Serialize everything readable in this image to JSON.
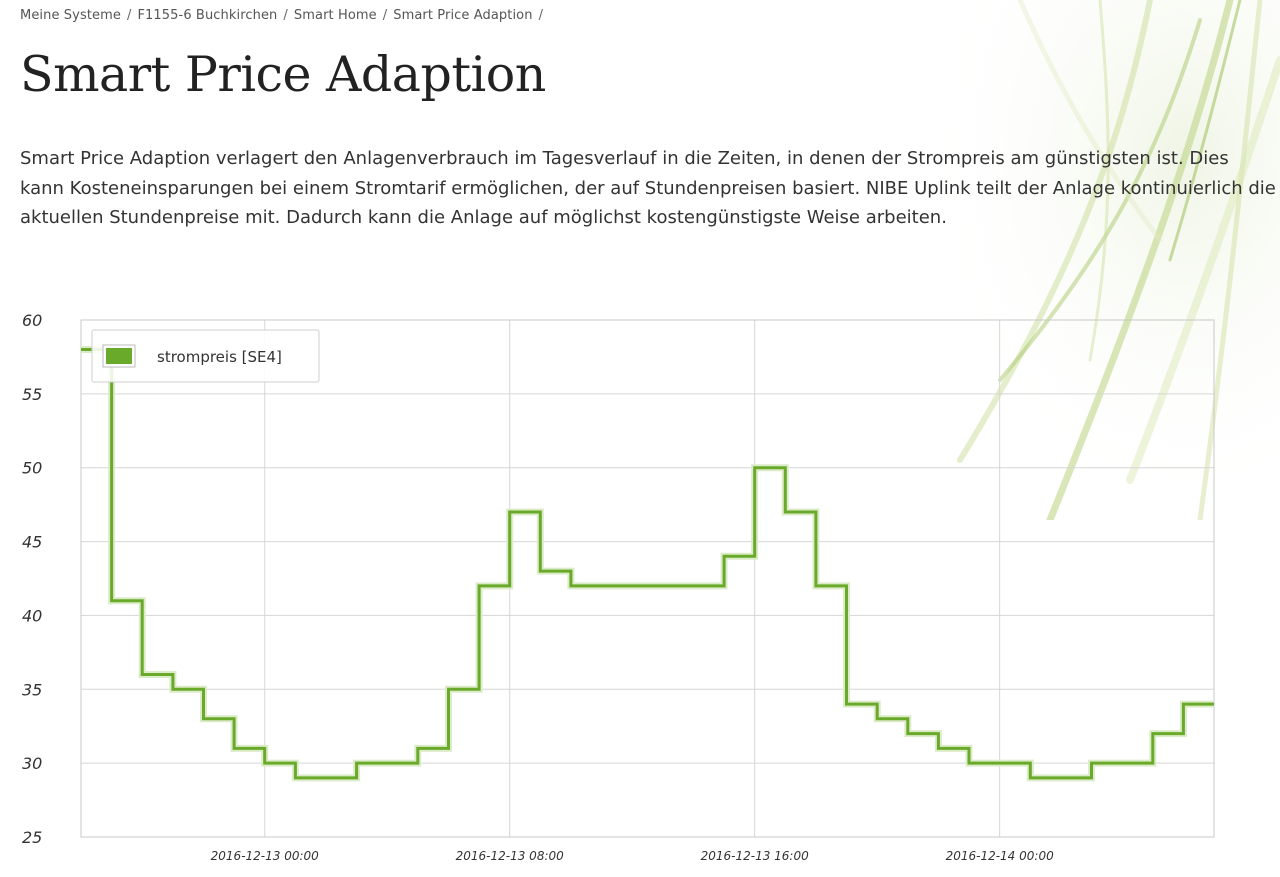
{
  "breadcrumb": {
    "items": [
      "Meine Systeme",
      "F1155-6 Buchkirchen",
      "Smart Home",
      "Smart Price Adaption"
    ],
    "separator": "/"
  },
  "page": {
    "title": "Smart Price Adaption",
    "intro": "Smart Price Adaption verlagert den Anlagenverbrauch im Tagesverlauf in die Zeiten, in denen der Strompreis am günstigsten ist. Dies kann Kosteneinsparungen bei einem Stromtarif ermöglichen, der auf Stundenpreisen basiert. NIBE Uplink teilt der Anlage kontinuierlich die aktuellen Stundenpreise mit. Dadurch kann die Anlage auf möglichst kostengünstigste Weise arbeiten."
  },
  "chart_data": {
    "type": "line",
    "step": true,
    "title": "",
    "xlabel": "",
    "ylabel": "",
    "ylim": [
      25,
      60
    ],
    "yticks": [
      25,
      30,
      35,
      40,
      45,
      50,
      55,
      60
    ],
    "xlim": [
      "2016-12-12 18:00",
      "2016-12-14 07:00"
    ],
    "xticks": [
      "2016-12-13 00:00",
      "2016-12-13 08:00",
      "2016-12-13 16:00",
      "2016-12-14 00:00"
    ],
    "grid": true,
    "legend_position": "top-left",
    "series": [
      {
        "name": "strompreis [SE4]",
        "color": "#6aaa2a",
        "x": [
          "2016-12-12 18:00",
          "2016-12-12 19:00",
          "2016-12-12 20:00",
          "2016-12-12 21:00",
          "2016-12-12 22:00",
          "2016-12-12 23:00",
          "2016-12-13 00:00",
          "2016-12-13 01:00",
          "2016-12-13 02:00",
          "2016-12-13 03:00",
          "2016-12-13 04:00",
          "2016-12-13 05:00",
          "2016-12-13 06:00",
          "2016-12-13 07:00",
          "2016-12-13 08:00",
          "2016-12-13 09:00",
          "2016-12-13 10:00",
          "2016-12-13 11:00",
          "2016-12-13 12:00",
          "2016-12-13 13:00",
          "2016-12-13 14:00",
          "2016-12-13 15:00",
          "2016-12-13 16:00",
          "2016-12-13 17:00",
          "2016-12-13 18:00",
          "2016-12-13 19:00",
          "2016-12-13 20:00",
          "2016-12-13 21:00",
          "2016-12-13 22:00",
          "2016-12-13 23:00",
          "2016-12-14 00:00",
          "2016-12-14 01:00",
          "2016-12-14 02:00",
          "2016-12-14 03:00",
          "2016-12-14 04:00",
          "2016-12-14 05:00",
          "2016-12-14 06:00"
        ],
        "values": [
          58,
          41,
          36,
          35,
          33,
          31,
          30,
          29,
          29,
          30,
          30,
          31,
          35,
          42,
          47,
          43,
          42,
          42,
          42,
          42,
          42,
          44,
          50,
          47,
          42,
          34,
          33,
          32,
          31,
          30,
          30,
          29,
          29,
          30,
          30,
          32,
          34
        ]
      }
    ]
  }
}
